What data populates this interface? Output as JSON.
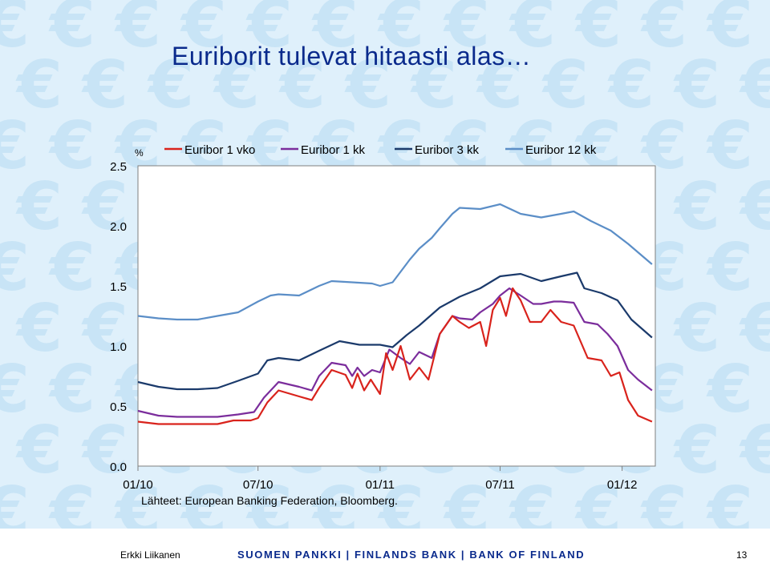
{
  "slide": {
    "title": "Euriborit tulevat hitaasti alas…",
    "author": "Erkki Liikanen",
    "bank": "SUOMEN PANKKI | FINLANDS BANK | BANK OF FINLAND",
    "page_number": "13",
    "background_icon": "euro-sign"
  },
  "chart_data": {
    "type": "line",
    "unit_label": "%",
    "source": "Lähteet: European Banking Federation, Bloomberg.",
    "ylim": [
      0.0,
      2.5
    ],
    "yticks": [
      "0.0",
      "0.5",
      "1.0",
      "1.5",
      "2.0",
      "2.5"
    ],
    "xlim": [
      "2010-01-01",
      "2012-02-20"
    ],
    "xticks": [
      {
        "date": "2010-01-01",
        "label": "01/10"
      },
      {
        "date": "2010-07-01",
        "label": "07/10"
      },
      {
        "date": "2011-01-01",
        "label": "01/11"
      },
      {
        "date": "2011-07-01",
        "label": "07/11"
      },
      {
        "date": "2012-01-01",
        "label": "01/12"
      }
    ],
    "grid": false,
    "legend_position": "top",
    "series": [
      {
        "name": "Euribor 1 vko",
        "color": "#d9231c",
        "points": [
          [
            "2010-01-01",
            0.37
          ],
          [
            "2010-02-01",
            0.35
          ],
          [
            "2010-03-01",
            0.35
          ],
          [
            "2010-04-01",
            0.35
          ],
          [
            "2010-05-01",
            0.35
          ],
          [
            "2010-05-25",
            0.38
          ],
          [
            "2010-06-20",
            0.38
          ],
          [
            "2010-07-01",
            0.4
          ],
          [
            "2010-07-15",
            0.53
          ],
          [
            "2010-08-01",
            0.63
          ],
          [
            "2010-09-01",
            0.58
          ],
          [
            "2010-09-20",
            0.55
          ],
          [
            "2010-10-01",
            0.65
          ],
          [
            "2010-10-20",
            0.8
          ],
          [
            "2010-11-10",
            0.76
          ],
          [
            "2010-11-20",
            0.65
          ],
          [
            "2010-11-28",
            0.77
          ],
          [
            "2010-12-08",
            0.63
          ],
          [
            "2010-12-18",
            0.72
          ],
          [
            "2011-01-01",
            0.6
          ],
          [
            "2011-01-10",
            0.94
          ],
          [
            "2011-01-20",
            0.8
          ],
          [
            "2011-02-01",
            1.0
          ],
          [
            "2011-02-15",
            0.72
          ],
          [
            "2011-03-01",
            0.82
          ],
          [
            "2011-03-15",
            0.72
          ],
          [
            "2011-04-01",
            1.1
          ],
          [
            "2011-04-20",
            1.25
          ],
          [
            "2011-05-01",
            1.2
          ],
          [
            "2011-05-15",
            1.15
          ],
          [
            "2011-06-01",
            1.2
          ],
          [
            "2011-06-10",
            1.0
          ],
          [
            "2011-06-20",
            1.3
          ],
          [
            "2011-07-01",
            1.4
          ],
          [
            "2011-07-10",
            1.25
          ],
          [
            "2011-07-20",
            1.48
          ],
          [
            "2011-08-01",
            1.38
          ],
          [
            "2011-08-15",
            1.2
          ],
          [
            "2011-09-01",
            1.2
          ],
          [
            "2011-09-15",
            1.3
          ],
          [
            "2011-10-01",
            1.2
          ],
          [
            "2011-10-20",
            1.17
          ],
          [
            "2011-11-10",
            0.9
          ],
          [
            "2011-12-01",
            0.88
          ],
          [
            "2011-12-15",
            0.75
          ],
          [
            "2011-12-28",
            0.78
          ],
          [
            "2012-01-10",
            0.55
          ],
          [
            "2012-01-25",
            0.42
          ],
          [
            "2012-02-15",
            0.37
          ]
        ]
      },
      {
        "name": "Euribor 1 kk",
        "color": "#7b2d9c",
        "points": [
          [
            "2010-01-01",
            0.46
          ],
          [
            "2010-02-01",
            0.42
          ],
          [
            "2010-03-01",
            0.41
          ],
          [
            "2010-04-01",
            0.41
          ],
          [
            "2010-05-01",
            0.41
          ],
          [
            "2010-06-01",
            0.43
          ],
          [
            "2010-06-25",
            0.45
          ],
          [
            "2010-07-10",
            0.57
          ],
          [
            "2010-08-01",
            0.7
          ],
          [
            "2010-09-01",
            0.66
          ],
          [
            "2010-09-20",
            0.63
          ],
          [
            "2010-10-01",
            0.75
          ],
          [
            "2010-10-20",
            0.86
          ],
          [
            "2010-11-10",
            0.84
          ],
          [
            "2010-11-20",
            0.75
          ],
          [
            "2010-11-28",
            0.82
          ],
          [
            "2010-12-08",
            0.75
          ],
          [
            "2010-12-20",
            0.8
          ],
          [
            "2011-01-01",
            0.78
          ],
          [
            "2011-01-15",
            0.97
          ],
          [
            "2011-02-01",
            0.9
          ],
          [
            "2011-02-15",
            0.85
          ],
          [
            "2011-03-01",
            0.95
          ],
          [
            "2011-03-20",
            0.9
          ],
          [
            "2011-04-01",
            1.1
          ],
          [
            "2011-04-20",
            1.25
          ],
          [
            "2011-05-01",
            1.23
          ],
          [
            "2011-05-20",
            1.22
          ],
          [
            "2011-06-01",
            1.28
          ],
          [
            "2011-06-20",
            1.35
          ],
          [
            "2011-07-01",
            1.42
          ],
          [
            "2011-07-15",
            1.48
          ],
          [
            "2011-08-01",
            1.42
          ],
          [
            "2011-08-20",
            1.35
          ],
          [
            "2011-09-01",
            1.35
          ],
          [
            "2011-09-20",
            1.37
          ],
          [
            "2011-10-01",
            1.37
          ],
          [
            "2011-10-20",
            1.36
          ],
          [
            "2011-11-05",
            1.2
          ],
          [
            "2011-11-25",
            1.18
          ],
          [
            "2011-12-10",
            1.1
          ],
          [
            "2011-12-25",
            1.0
          ],
          [
            "2012-01-10",
            0.8
          ],
          [
            "2012-01-25",
            0.72
          ],
          [
            "2012-02-15",
            0.63
          ]
        ]
      },
      {
        "name": "Euribor 3 kk",
        "color": "#1b3a6b",
        "points": [
          [
            "2010-01-01",
            0.7
          ],
          [
            "2010-02-01",
            0.66
          ],
          [
            "2010-03-01",
            0.64
          ],
          [
            "2010-04-01",
            0.64
          ],
          [
            "2010-05-01",
            0.65
          ],
          [
            "2010-06-01",
            0.71
          ],
          [
            "2010-07-01",
            0.77
          ],
          [
            "2010-07-15",
            0.88
          ],
          [
            "2010-08-01",
            0.9
          ],
          [
            "2010-09-01",
            0.88
          ],
          [
            "2010-10-01",
            0.96
          ],
          [
            "2010-11-01",
            1.04
          ],
          [
            "2010-12-01",
            1.01
          ],
          [
            "2011-01-01",
            1.01
          ],
          [
            "2011-01-20",
            0.99
          ],
          [
            "2011-02-10",
            1.09
          ],
          [
            "2011-03-01",
            1.17
          ],
          [
            "2011-04-01",
            1.32
          ],
          [
            "2011-05-01",
            1.41
          ],
          [
            "2011-06-01",
            1.48
          ],
          [
            "2011-07-01",
            1.58
          ],
          [
            "2011-08-01",
            1.6
          ],
          [
            "2011-09-01",
            1.54
          ],
          [
            "2011-10-01",
            1.58
          ],
          [
            "2011-10-25",
            1.61
          ],
          [
            "2011-11-05",
            1.48
          ],
          [
            "2011-12-01",
            1.44
          ],
          [
            "2011-12-25",
            1.38
          ],
          [
            "2012-01-15",
            1.22
          ],
          [
            "2012-02-15",
            1.07
          ]
        ]
      },
      {
        "name": "Euribor 12 kk",
        "color": "#5b8ec7",
        "points": [
          [
            "2010-01-01",
            1.25
          ],
          [
            "2010-02-01",
            1.23
          ],
          [
            "2010-03-01",
            1.22
          ],
          [
            "2010-04-01",
            1.22
          ],
          [
            "2010-05-01",
            1.25
          ],
          [
            "2010-06-01",
            1.28
          ],
          [
            "2010-07-01",
            1.37
          ],
          [
            "2010-07-20",
            1.42
          ],
          [
            "2010-08-01",
            1.43
          ],
          [
            "2010-09-01",
            1.42
          ],
          [
            "2010-10-01",
            1.5
          ],
          [
            "2010-10-20",
            1.54
          ],
          [
            "2010-11-20",
            1.53
          ],
          [
            "2010-12-20",
            1.52
          ],
          [
            "2011-01-01",
            1.5
          ],
          [
            "2011-01-20",
            1.53
          ],
          [
            "2011-02-15",
            1.72
          ],
          [
            "2011-03-01",
            1.81
          ],
          [
            "2011-03-20",
            1.9
          ],
          [
            "2011-04-01",
            1.98
          ],
          [
            "2011-04-20",
            2.1
          ],
          [
            "2011-05-01",
            2.15
          ],
          [
            "2011-06-01",
            2.14
          ],
          [
            "2011-07-01",
            2.18
          ],
          [
            "2011-08-01",
            2.1
          ],
          [
            "2011-09-01",
            2.07
          ],
          [
            "2011-10-01",
            2.1
          ],
          [
            "2011-10-20",
            2.12
          ],
          [
            "2011-11-15",
            2.04
          ],
          [
            "2011-12-15",
            1.96
          ],
          [
            "2012-01-10",
            1.85
          ],
          [
            "2012-02-15",
            1.68
          ]
        ]
      }
    ]
  }
}
